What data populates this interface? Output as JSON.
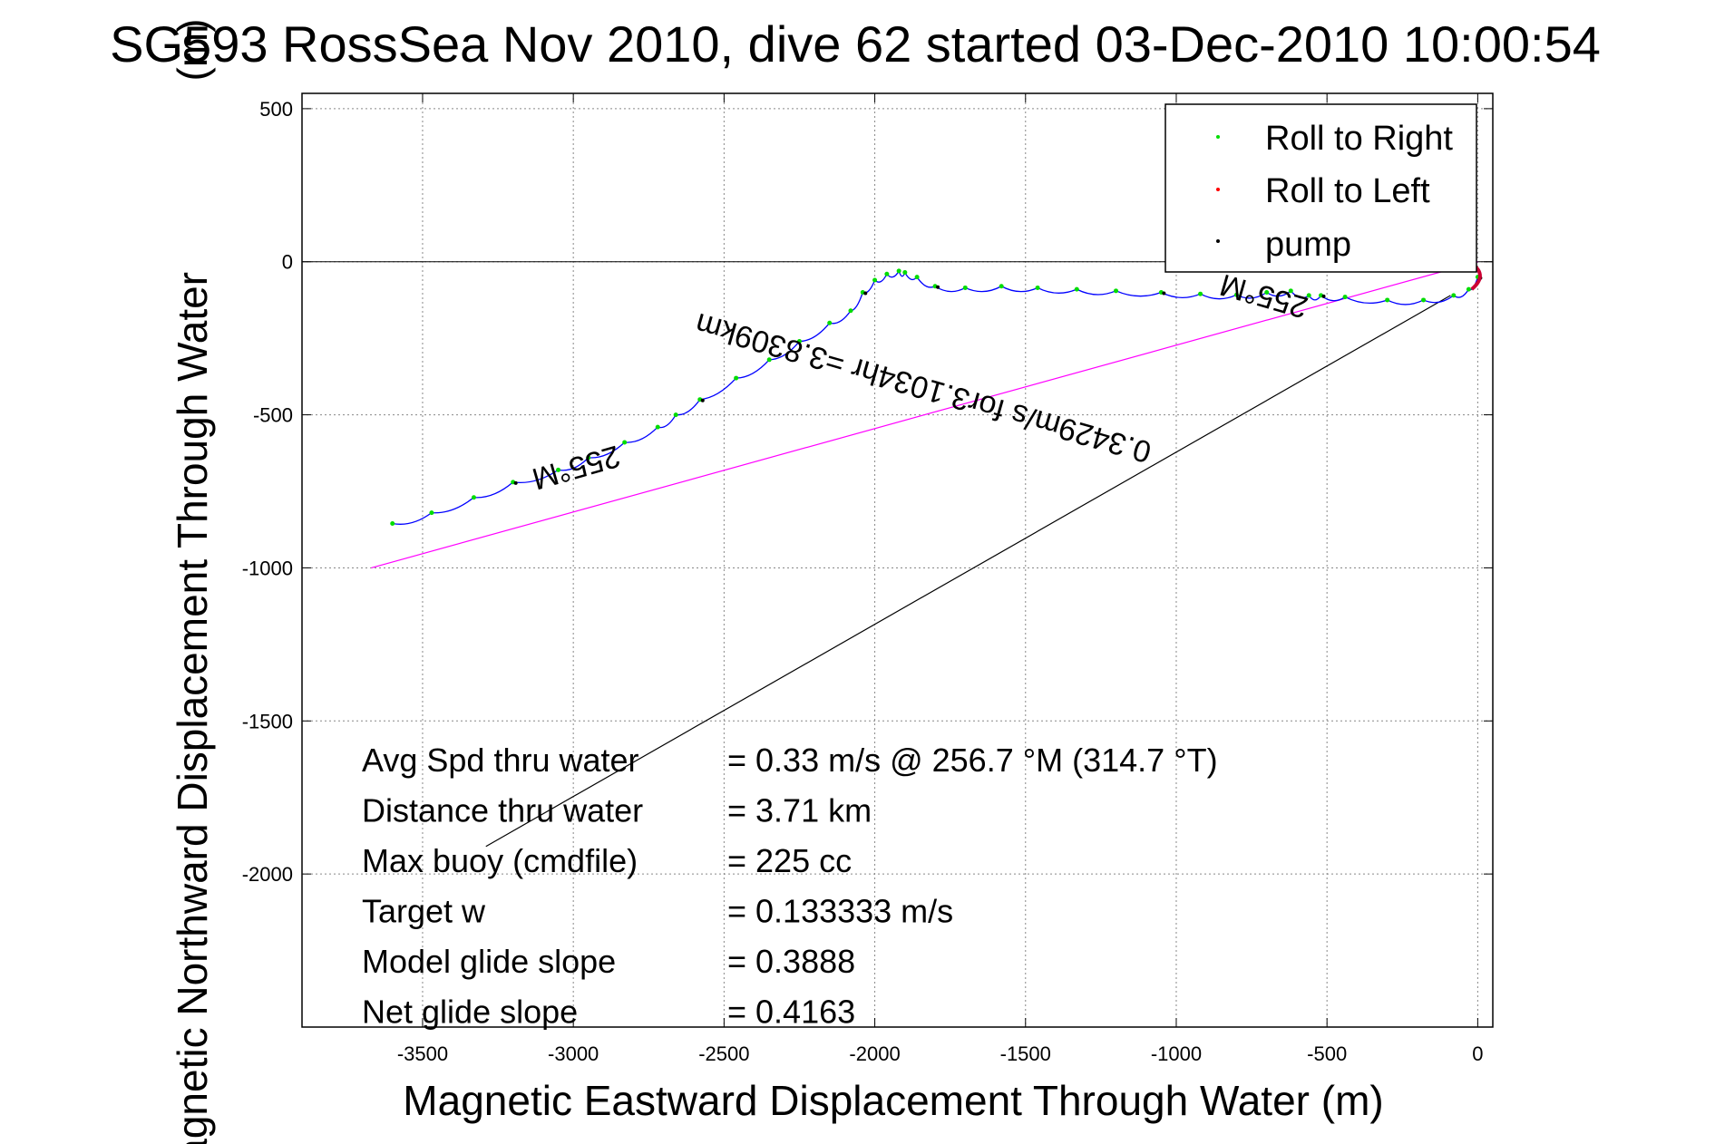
{
  "chart_data": {
    "type": "line",
    "title": "SG593 RossSea Nov 2010, dive 62 started 03-Dec-2010 10:00:54",
    "title_overlap": "(m)",
    "xlabel": "Magnetic Eastward Displacement Through Water (m)",
    "ylabel": "Magnetic Northward Displacement Through Water",
    "xlim": [
      -3900,
      50
    ],
    "ylim": [
      -2500,
      550
    ],
    "xticks": [
      -3500,
      -3000,
      -2500,
      -2000,
      -1500,
      -1000,
      -500,
      0
    ],
    "yticks": [
      500,
      0,
      -500,
      -1000,
      -1500,
      -2000
    ],
    "grid": true,
    "legend": {
      "placement": "top-right",
      "entries": [
        {
          "label": "Roll to Right",
          "color": "#00dd00"
        },
        {
          "label": "Roll to Left",
          "color": "#ff0000"
        },
        {
          "label": "pump",
          "color": "#000000"
        }
      ]
    },
    "colors": {
      "track": "#0000ff",
      "heading_line": "#ff00ff",
      "current_line": "#000000",
      "left_roll": "#cc0033"
    },
    "track": {
      "x": [
        -3600,
        -3470,
        -3330,
        -3200,
        -3050,
        -2950,
        -2830,
        -2720,
        -2660,
        -2580,
        -2460,
        -2350,
        -2250,
        -2150,
        -2080,
        -2040,
        -2000,
        -1960,
        -1920,
        -1900,
        -1860,
        -1800,
        -1700,
        -1580,
        -1460,
        -1330,
        -1200,
        -1050,
        -920,
        -800,
        -700,
        -620,
        -560,
        -520,
        -440,
        -300,
        -180,
        -80,
        -30,
        0
      ],
      "y": [
        -855,
        -820,
        -770,
        -720,
        -680,
        -640,
        -590,
        -540,
        -500,
        -450,
        -380,
        -320,
        -260,
        -200,
        -160,
        -100,
        -60,
        -40,
        -30,
        -35,
        -50,
        -80,
        -85,
        -80,
        -85,
        -90,
        -95,
        -100,
        -105,
        -108,
        -100,
        -95,
        -110,
        -110,
        -115,
        -125,
        -125,
        -110,
        -90,
        -50
      ]
    },
    "heading_line": {
      "x": [
        -3670,
        0
      ],
      "y": [
        -1000,
        0
      ]
    },
    "current_line": {
      "x": [
        -3290,
        -90
      ],
      "y": [
        -1910,
        -110
      ]
    },
    "annotations": [
      {
        "text": "255°M",
        "x": -3000,
        "y": -640
      },
      {
        "text": "0.3429m/s for3.1034hr =3.8309km",
        "x": -1830,
        "y": -380
      },
      {
        "text": "255°M",
        "x": -700,
        "y": -80
      }
    ],
    "stats": [
      {
        "label": "Avg Spd thru water",
        "value": "=  0.33 m/s @ 256.7 °M (314.7 °T)"
      },
      {
        "label": "Distance thru water",
        "value": "=  3.71 km"
      },
      {
        "label": "Max buoy (cmdfile)",
        "value": "= 225 cc"
      },
      {
        "label": "Target w",
        "value": "= 0.133333 m/s"
      },
      {
        "label": "Model glide slope",
        "value": "= 0.3888"
      },
      {
        "label": "Net glide slope",
        "value": "= 0.4163"
      }
    ]
  }
}
